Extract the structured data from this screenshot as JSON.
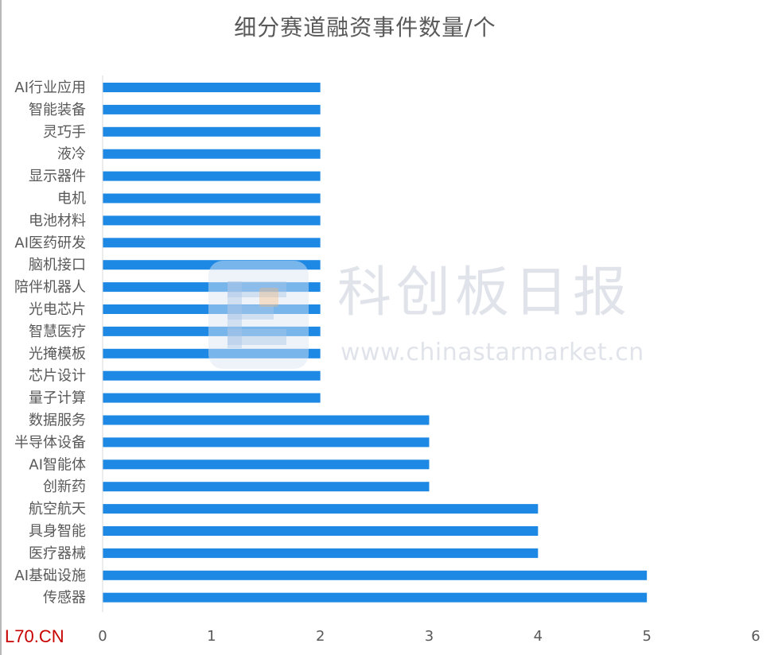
{
  "chart_data": {
    "type": "bar",
    "orientation": "horizontal",
    "title": "细分赛道融资事件数量/个",
    "xlabel": "",
    "ylabel": "",
    "xlim": [
      0,
      6
    ],
    "x_ticks": [
      0,
      1,
      2,
      3,
      4,
      5,
      6
    ],
    "grid": false,
    "legend": "none",
    "categories": [
      "AI行业应用",
      "智能装备",
      "灵巧手",
      "液冷",
      "显示器件",
      "电机",
      "电池材料",
      "AI医药研发",
      "脑机接口",
      "陪伴机器人",
      "光电芯片",
      "智慧医疗",
      "光掩模板",
      "芯片设计",
      "量子计算",
      "数据服务",
      "半导体设备",
      "AI智能体",
      "创新药",
      "航空航天",
      "具身智能",
      "医疗器械",
      "AI基础设施",
      "传感器"
    ],
    "values": [
      2,
      2,
      2,
      2,
      2,
      2,
      2,
      2,
      2,
      2,
      2,
      2,
      2,
      2,
      2,
      3,
      3,
      3,
      3,
      4,
      4,
      4,
      5,
      5
    ]
  },
  "style": {
    "bar_color": "#1e88e5",
    "text_color": "#595959",
    "axis_color": "#d9d9d9",
    "corner_mark_color": "#c80000"
  },
  "watermark": {
    "cn_text": "科创板日报",
    "url_text": "www.chinastarmarket.cn"
  },
  "corner_mark": {
    "text": "L70.CN"
  }
}
